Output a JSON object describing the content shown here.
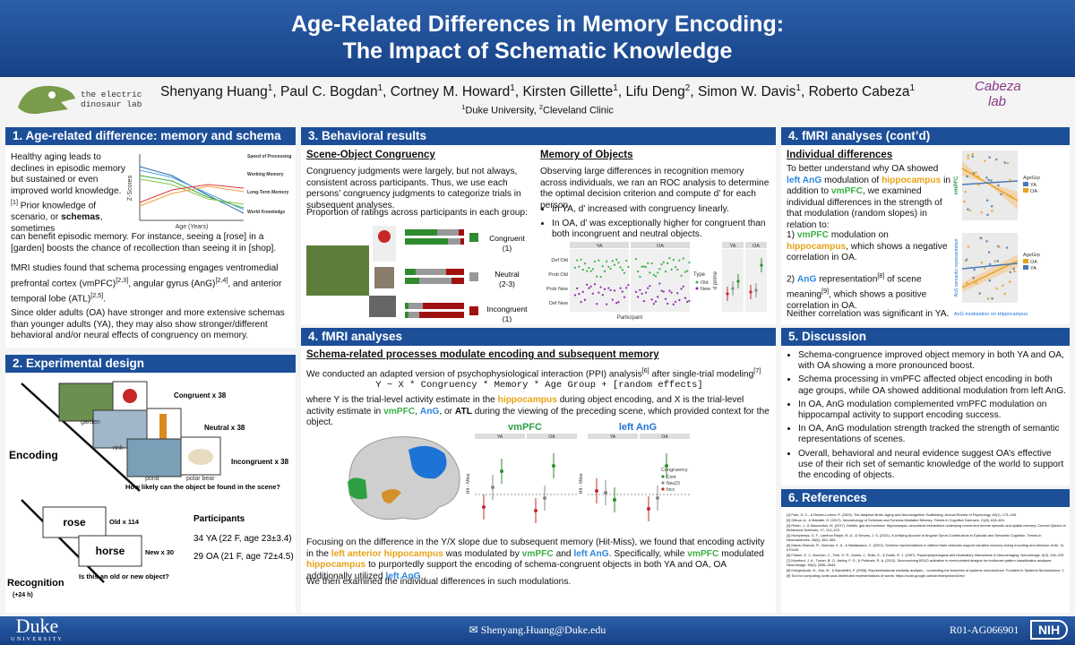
{
  "header": {
    "title": [
      "Age-Related Differences in Memory Encoding:",
      "The Impact of Schematic Knowledge"
    ],
    "lab_left": [
      "the electric",
      "dinosaur lab"
    ],
    "lab_right": [
      "Cabeza",
      "lab"
    ],
    "authors": [
      {
        "name": "Shenyang Huang",
        "aff": "1"
      },
      {
        "name": "Paul C. Bogdan",
        "aff": "1"
      },
      {
        "name": "Cortney M. Howard",
        "aff": "1"
      },
      {
        "name": "Kirsten Gillette",
        "aff": "1"
      },
      {
        "name": "Lifu Deng",
        "aff": "2"
      },
      {
        "name": "Simon W. Davis",
        "aff": "1"
      },
      {
        "name": "Roberto Cabeza",
        "aff": "1"
      }
    ],
    "affiliations": [
      {
        "text": "1",
        "sup": true
      },
      "Duke University, ",
      {
        "text": "2",
        "sup": true
      },
      "Cleveland Clinic"
    ]
  },
  "s1": {
    "title": "1. Age-related difference: memory and schema",
    "p1": [
      "Healthy aging leads to declines in episodic memory but sustained or even improved world knowledge.",
      {
        "text": "[1]",
        "sup": true
      },
      " Prior knowledge of scenario, or ",
      {
        "text": "schemas",
        "bold": true
      },
      ", sometimes"
    ],
    "p1b": "can benefit episodic memory. For instance, seeing a [rose] in a [garden] boosts the chance of recollection than seeing it in [shop].",
    "p2": [
      "fMRI studies found that schema processing engages ventromedial prefrontal cortex (vmPFC)",
      {
        "text": "[2,3]",
        "sup": true
      },
      ", angular gyrus (AnG)",
      {
        "text": "[2,4]",
        "sup": true
      },
      ", and anterior temporal lobe (ATL)",
      {
        "text": "[2,5]",
        "sup": true
      },
      "."
    ],
    "p3": "Since older adults (OA) have stronger and more extensive schemas than younger adults (YA), they may also show stronger/different behavioral and/or neural effects of congruency on memory.",
    "fig": {
      "ylabel": "Z-Scores",
      "xlabel": "Age (Years)",
      "groups": [
        "Speed of Processing",
        "Working Memory",
        "Long-Term Memory",
        "World Knowledge"
      ]
    }
  },
  "s2": {
    "title": "2. Experimental design",
    "encoding": "Encoding",
    "conds": [
      "Congruent x 38",
      "Neutral x 38",
      "Incongruent x 38"
    ],
    "scenes": [
      "garden",
      "rink",
      "pond",
      "polar bear"
    ],
    "q1": "How likely can the object be found in the scene?",
    "recognition": "Recognition",
    "delay": "(+24 h)",
    "old": "rose",
    "old_n": "Old x 114",
    "new": "horse",
    "new_n": "New x 30",
    "q2": "Is this an old or new object?",
    "participants": "Participants",
    "ya": "34 YA (22 F, age 23±3.4)",
    "oa": "29 OA (21 F, age 72±4.5)"
  },
  "s3": {
    "title": "3. Behavioral results",
    "h1": "Scene-Object Congruency",
    "p1": "Congruency judgments were largely, but not always, consistent across participants. Thus, we use each persons’ congruency judgments to categorize trials in subsequent analyses.",
    "p2": "Proportion of ratings across participants in each group:",
    "legend": [
      "Congruent",
      "(1)",
      "Neutral",
      "(2-3)",
      "Incongruent",
      "(1)"
    ],
    "h2": "Memory of Objects",
    "p3": "Observing large differences in recognition memory across individuals, we ran an ROC analysis to determine the optimal decision criterion and compute d’ for each person.",
    "b1": "In YA,  d’ increased with congruency linearly.",
    "b2": "In OA, d’ was exceptionally higher for congruent than both incongruent and neutral objects.",
    "fig": {
      "groups": [
        "YA",
        "OA"
      ],
      "ylabels": [
        "Def Old",
        "Prob Old",
        "Prob New",
        "Def New"
      ],
      "xlabel": "Participant",
      "type": "Type",
      "types": [
        "Old",
        "New"
      ],
      "dprime": "d prime"
    }
  },
  "s4": {
    "title": "4. fMRI analyses",
    "h1": "Schema-related processes modulate encoding and subsequent memory",
    "p1": [
      "We conducted an adapted version of psychophysiological interaction (PPI) analysis",
      {
        "text": "[6]",
        "sup": true
      },
      " after single-trial modeling",
      {
        "text": "[7]",
        "sup": true
      }
    ],
    "formula": "Y ~ X * Congruency * Memory * Age Group + [random effects]",
    "p2": [
      "where Y is the trial-level activity estimate in the ",
      {
        "text": "hippocampus",
        "color": "#e8a317",
        "bold": true
      },
      " during object encoding, and X is the trial-level activity estimate in ",
      {
        "text": "vmPFC",
        "color": "#3cb043",
        "bold": true
      },
      ", ",
      {
        "text": "AnG",
        "color": "#2e86de",
        "bold": true
      },
      ", or ",
      {
        "text": "ATL",
        "bold": true
      },
      " during the viewing of the preceding scene, which provided context for the object."
    ],
    "fig": {
      "titles": [
        "vmPFC",
        "left AnG"
      ],
      "groups": [
        "YA",
        "OA"
      ],
      "ylabel": "Hit - Miss",
      "legend": "Congruency",
      "levels": [
        "Cont",
        "Neu23",
        "Incc"
      ]
    },
    "p3": [
      "Focusing on the difference in the Y/X slope due to subsequent memory (Hit-Miss), we found that encoding activity in the ",
      {
        "text": "left anterior hippocampus",
        "color": "#e8a317",
        "bold": true
      },
      " was modulated by ",
      {
        "text": "vmPFC",
        "color": "#3cb043",
        "bold": true
      },
      " and ",
      {
        "text": "left AnG",
        "color": "#2e86de",
        "bold": true
      },
      ". Specifically, while ",
      {
        "text": "vmPFC",
        "color": "#3cb043",
        "bold": true
      },
      " modulated ",
      {
        "text": "hippocampus",
        "color": "#e8a317",
        "bold": true
      },
      " to purportedly support the encoding of schema-congruent objects in both YA and OA, OA additionally utilized ",
      {
        "text": "left AnG",
        "color": "#2e86de",
        "bold": true
      },
      "."
    ],
    "p4": "We then examined the individual differences in such modulations."
  },
  "s4b": {
    "title": "4. fMRI analyses (cont’d)",
    "h1": "Individual differences",
    "p1": [
      "To better understand why OA showed ",
      {
        "text": "left AnG",
        "color": "#2e86de",
        "bold": true
      },
      " modulation of ",
      {
        "text": "hippocampus",
        "color": "#e8a317",
        "bold": true
      },
      " in addition to ",
      {
        "text": "vmPFC",
        "color": "#3cb043",
        "bold": true
      },
      ", we examined individual differences in the strength of that modulation (random slopes) in relation to:"
    ],
    "i1": [
      "1)   ",
      {
        "text": "vmPFC",
        "color": "#3cb043",
        "bold": true
      },
      " modulation on ",
      {
        "text": "hippocampus",
        "color": "#e8a317",
        "bold": true
      },
      ", which shows a negative correlation in OA."
    ],
    "i2": [
      "2)   ",
      {
        "text": "AnG",
        "color": "#2e86de",
        "bold": true
      },
      " representation",
      {
        "text": "[8]",
        "sup": true
      },
      " of scene meaning",
      {
        "text": "[9]",
        "sup": true
      },
      ", which shows a positive correlation in OA."
    ],
    "p2": "Neither correlation was significant in YA.",
    "fig": {
      "legend": "AgeGrp",
      "groups": [
        "YA",
        "OA"
      ],
      "y1": "vmPFC",
      "y2": "AnG semantic representation",
      "x": "AnG modulation on Hippocampus"
    }
  },
  "s5": {
    "title": "5. Discussion",
    "items": [
      "Schema-congruence improved object memory in both YA and OA, with OA showing a more pronounced boost.",
      "Schema processing in vmPFC affected object encoding in both age groups, while OA showed additional modulation from left AnG.",
      "In OA, AnG modulation complemented vmPFC modulation on hippocampal activity to support encoding success.",
      "In OA, AnG modulation strength tracked the strength of semantic representations of scenes.",
      "Overall, behavioral and neural evidence suggest OA’s effective use of their rich set of semantic knowledge of the world to support the encoding of objects."
    ]
  },
  "s6": {
    "title": "6. References",
    "items": [
      "[1] Park, D. C., & Reuter-Lorenz, P. (2009). The Adaptive Brain: Aging and Neurocognitive Scaffolding. Annual Review of Psychology, 60(1), 173–196.",
      "[2] Gilboa, A., & Marlatte, H. (2017). Neurobiology of Schemas and Schema-Mediated Memory. Trends in Cognitive Sciences, 21(8), 618–631.",
      "[3] Robin, J., & Moscovitch, M. (2017). Details, gist and schema: Hippocampal–neocortical interactions underlying recent and remote episodic and spatial memory. Current Opinion in Behavioral Sciences, 17, 114–123.",
      "[4] Humphreys, G. F., Lambon Ralph, M. A., & Simons, J. S. (2021). A Unifying Account of Angular Gyrus Contributions to Episodic and Semantic Cognition. Trends in Neurosciences, 44(6), 452–463.",
      "[5] Masís-Obando, R., Norman, K. A., & Baldassano, C. (2022). Schema representations in distinct brain networks support narrative memory during encoding and retrieval. eLife, 11, e70445.",
      "[6] Friston, K. J., Buechel, C., Fink, G. R., Morris, J., Rolls, E., & Dolan, R. J. (1997). Psychophysiological and Modulatory Interactions in Neuroimaging. NeuroImage, 6(3), 218–229.",
      "[7] Mumford, J. A., Turner, B. O., Ashby, F. G., & Poldrack, R. A. (2012). Deconvolving BOLD activation in event-related designs for multivoxel pattern classification analyses. NeuroImage, 59(3), 2636–2643.",
      "[8] Kriegeskorte, N., Mur, M., & Bandettini, P. (2008). Representational similarity analysis – connecting the branches of systems neuroscience. Frontiers in Systems Neuroscience, 2.",
      "[9] Tool for computing continuous distributed representations of words: https://code.google.com/archive/p/word2vec/"
    ]
  },
  "footer": {
    "duke": "Duke",
    "university": "UNIVERSITY",
    "email": "Shenyang.Huang@Duke.edu",
    "grant": "R01-AG066901",
    "nih": "NIH"
  }
}
